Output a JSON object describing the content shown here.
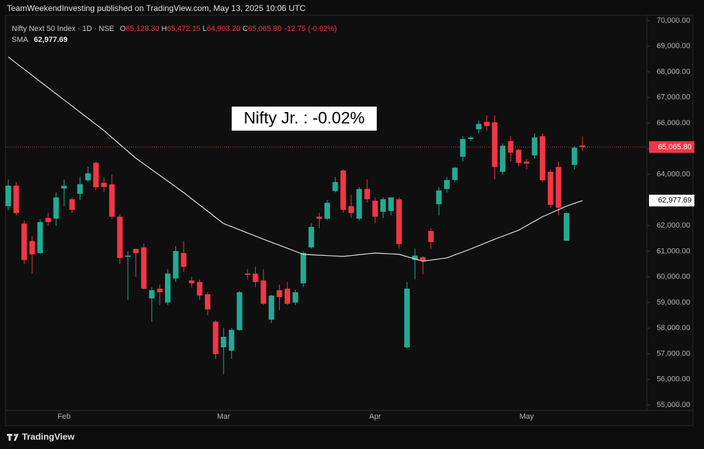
{
  "header": "TeamWeekendInvesting published on TradingView.com, May 13, 2025 10:06 UTC",
  "legend": {
    "symbol": "Nifty Next 50 Index · 1D · NSE",
    "items": [
      {
        "key": "O",
        "value": "65,128.30"
      },
      {
        "key": "H",
        "value": "65,472.15"
      },
      {
        "key": "L",
        "value": "64,903.20"
      },
      {
        "key": "C",
        "value": "65,065.80"
      }
    ],
    "change": "-12.75 (-0.02%)"
  },
  "footer": "TradingView",
  "chart_data": {
    "type": "candlestick",
    "annotation": "Nifty Jr. : -0.02%",
    "up_color": "#22ab94",
    "down_color": "#f23645",
    "categories": [
      null,
      null,
      null,
      null,
      null,
      null,
      null,
      "Feb",
      null,
      null,
      null,
      null,
      null,
      null,
      null,
      null,
      null,
      null,
      null,
      null,
      null,
      null,
      null,
      null,
      null,
      null,
      null,
      "Mar",
      null,
      null,
      null,
      null,
      null,
      null,
      null,
      null,
      null,
      null,
      null,
      null,
      null,
      null,
      null,
      null,
      null,
      null,
      "Apr",
      null,
      null,
      null,
      null,
      null,
      null,
      null,
      null,
      null,
      null,
      null,
      null,
      null,
      null,
      null,
      null,
      null,
      null,
      "May",
      null,
      null,
      null,
      null,
      null,
      null,
      null
    ],
    "open": [
      62760,
      63560,
      62080,
      61400,
      60930,
      62300,
      62270,
      63450,
      63030,
      63240,
      63770,
      64450,
      63670,
      63610,
      62350,
      60780,
      61090,
      61150,
      59160,
      59540,
      59000,
      59940,
      60930,
      59860,
      59800,
      59320,
      58250,
      57250,
      57120,
      57930,
      60130,
      60130,
      59860,
      58330,
      59480,
      59540,
      59000,
      59750,
      61150,
      62350,
      62270,
      63350,
      64150,
      62760,
      62270,
      63430,
      62970,
      62540,
      62570,
      63030,
      57250,
      60660,
      60770,
      61790,
      62840,
      63430,
      63780,
      64690,
      65380,
      65760,
      66050,
      66030,
      64100,
      65300,
      64960,
      64500,
      64740,
      65490,
      64100,
      64290,
      61410,
      64370,
      65128.3
    ],
    "high": [
      63800,
      63700,
      62200,
      61600,
      62250,
      62500,
      63300,
      63800,
      63100,
      63900,
      64300,
      64500,
      63900,
      64000,
      62450,
      61000,
      61100,
      61300,
      59600,
      59700,
      60300,
      61200,
      61400,
      60000,
      59900,
      59400,
      58300,
      58000,
      58000,
      59450,
      60300,
      60400,
      60300,
      59300,
      59700,
      59800,
      59500,
      61000,
      62100,
      62500,
      63000,
      63900,
      64200,
      63200,
      63500,
      63800,
      63100,
      63100,
      63100,
      63100,
      59800,
      61100,
      60800,
      61900,
      63500,
      63900,
      64300,
      65500,
      65500,
      66100,
      66300,
      66300,
      65200,
      65500,
      65000,
      64600,
      65600,
      65600,
      64200,
      64500,
      62500,
      65100,
      65472.15
    ],
    "low": [
      62600,
      62400,
      60500,
      60130,
      60900,
      62000,
      62000,
      62760,
      62500,
      63000,
      63700,
      63400,
      63300,
      62260,
      60500,
      59100,
      60000,
      59500,
      58250,
      58900,
      58900,
      59800,
      60200,
      59600,
      59100,
      58500,
      56800,
      56200,
      56800,
      57900,
      59900,
      59600,
      58900,
      58200,
      58700,
      58900,
      58900,
      59600,
      61100,
      61900,
      62200,
      63300,
      62500,
      62300,
      62200,
      62900,
      62100,
      62300,
      62400,
      61100,
      57200,
      59900,
      60100,
      61100,
      62400,
      63300,
      63700,
      64500,
      65300,
      65600,
      65700,
      63800,
      64000,
      64500,
      64300,
      64200,
      64600,
      63700,
      62700,
      62400,
      61400,
      64200,
      64903.2
    ],
    "close": [
      63560,
      62490,
      60660,
      60880,
      62140,
      62140,
      63100,
      63550,
      62620,
      63620,
      64040,
      63500,
      63510,
      62350,
      60740,
      60830,
      60930,
      59540,
      59480,
      59400,
      60130,
      61010,
      60390,
      59750,
      59270,
      58730,
      56990,
      57660,
      57930,
      59400,
      60080,
      59800,
      58950,
      59270,
      59210,
      58950,
      59400,
      60930,
      61950,
      62270,
      62890,
      63700,
      62620,
      62490,
      63430,
      63030,
      62350,
      63030,
      63100,
      61280,
      59540,
      60830,
      60640,
      61360,
      63370,
      63780,
      64260,
      65380,
      65440,
      65970,
      65890,
      64290,
      65120,
      64850,
      64450,
      64420,
      65440,
      63770,
      62810,
      62700,
      62490,
      65040,
      65065.8
    ],
    "sma": {
      "name": "SMA",
      "color": "#e6e6e6",
      "value_label": "62,977.69",
      "values": [
        68580,
        68341,
        68102,
        67863,
        67624,
        67385,
        67146,
        66907,
        66668,
        66429,
        66190,
        65951,
        65710,
        65440,
        65170,
        64900,
        64630,
        64407,
        64184,
        63961,
        63738,
        63515,
        63290,
        63048,
        62806,
        62564,
        62322,
        62080,
        61958,
        61836,
        61714,
        61592,
        61470,
        61352,
        61234,
        61116,
        60998,
        60880,
        60864,
        60848,
        60832,
        60816,
        60800,
        60832,
        60865,
        60897,
        60930,
        60913,
        60897,
        60880,
        60790,
        60700,
        60610,
        60653,
        60697,
        60740,
        60857,
        60973,
        61090,
        61217,
        61343,
        61470,
        61587,
        61703,
        61820,
        61997,
        62173,
        62350,
        62487,
        62623,
        62760,
        62870,
        62977.69
      ]
    },
    "last_price": {
      "value": 65065.8,
      "label": "65,065.80"
    },
    "ylim": [
      54785,
      70215
    ],
    "yticks": [
      {
        "value": 55000,
        "label": "55,000.00"
      },
      {
        "value": 56000,
        "label": "56,000.00"
      },
      {
        "value": 57000,
        "label": "57,000.00"
      },
      {
        "value": 58000,
        "label": "58,000.00"
      },
      {
        "value": 59000,
        "label": "59,000.00"
      },
      {
        "value": 60000,
        "label": "60,000.00"
      },
      {
        "value": 61000,
        "label": "61,000.00"
      },
      {
        "value": 62000,
        "label": "62,000.00"
      },
      {
        "value": 63000,
        "label": "63,000.00"
      },
      {
        "value": 64000,
        "label": "64,000.00"
      },
      {
        "value": 65000,
        "label": "65,000.00"
      },
      {
        "value": 66000,
        "label": "66,000.00"
      },
      {
        "value": 67000,
        "label": "67,000.00"
      },
      {
        "value": 68000,
        "label": "68,000.00"
      },
      {
        "value": 69000,
        "label": "69,000.00"
      },
      {
        "value": 70000,
        "label": "70,000.00"
      }
    ],
    "grid": false
  }
}
